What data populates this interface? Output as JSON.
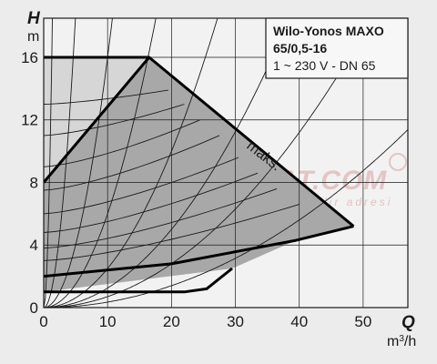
{
  "chart_data": {
    "type": "line",
    "title_lines": [
      "Wilo-Yonos MAXO",
      "65/0,5-16",
      "1 ~ 230 V - DN 65"
    ],
    "y_axis_letter": "H",
    "y_unit": "m",
    "x_axis_letter": "Q",
    "x_unit_base": "m",
    "x_unit_sup": "3",
    "x_unit_tail": "/h",
    "x_ticks": [
      "0",
      "10",
      "20",
      "30",
      "40",
      "50"
    ],
    "y_ticks": [
      "0",
      "4",
      "8",
      "12",
      "16"
    ],
    "xlim": [
      0,
      57
    ],
    "ylim": [
      0,
      18.5
    ],
    "grid": true,
    "max_label": "maks.",
    "watermark_main": "MEKANIKTESISAT.COM",
    "watermark_sub": "mekanik tesisat piyasasının güvenilir adresi",
    "operating_region": {
      "outer": [
        [
          0,
          8.0
        ],
        [
          16.5,
          16.0
        ],
        [
          48.5,
          5.2
        ],
        [
          39.5,
          4.3
        ],
        [
          29.5,
          2.5
        ],
        [
          0,
          1.0
        ]
      ],
      "light_zone": [
        [
          0,
          16.0
        ],
        [
          16.5,
          16.0
        ],
        [
          0,
          8.0
        ]
      ]
    },
    "series": [
      {
        "values": [
          [
            0,
            16.0
          ],
          [
            16.5,
            16.0
          ],
          [
            48.5,
            5.2
          ]
        ]
      },
      {
        "values": [
          [
            0,
            8.0
          ],
          [
            16.5,
            16.0
          ]
        ]
      },
      {
        "values": [
          [
            0,
            2.0
          ],
          [
            20,
            2.8
          ],
          [
            39.5,
            4.3
          ],
          [
            48.5,
            5.2
          ]
        ]
      },
      {
        "values": [
          [
            0,
            1.0
          ],
          [
            22,
            1.0
          ],
          [
            25.5,
            1.2
          ],
          [
            29.5,
            2.5
          ]
        ]
      }
    ],
    "system_curves": [
      {
        "k": 10.0
      },
      {
        "k": 0.75
      },
      {
        "k": 0.16
      },
      {
        "k": 0.06
      },
      {
        "k": 0.025
      },
      {
        "k": 0.0125
      },
      {
        "k": 0.007
      },
      {
        "k": 0.0035
      }
    ],
    "intermediate_curves": [
      {
        "x_end": 19.5,
        "y0": 13.0,
        "y_end": 13.9
      },
      {
        "x_end": 22.0,
        "y0": 11.0,
        "y_end": 13.0
      },
      {
        "x_end": 24.5,
        "y0": 9.0,
        "y_end": 12.0
      },
      {
        "x_end": 27.5,
        "y0": 7.5,
        "y_end": 11.0
      },
      {
        "x_end": 30.5,
        "y0": 6.0,
        "y_end": 9.6
      },
      {
        "x_end": 33.5,
        "y0": 4.8,
        "y_end": 8.6
      },
      {
        "x_end": 36.5,
        "y0": 3.8,
        "y_end": 7.6
      },
      {
        "x_end": 40.0,
        "y0": 3.0,
        "y_end": 6.6
      }
    ]
  }
}
